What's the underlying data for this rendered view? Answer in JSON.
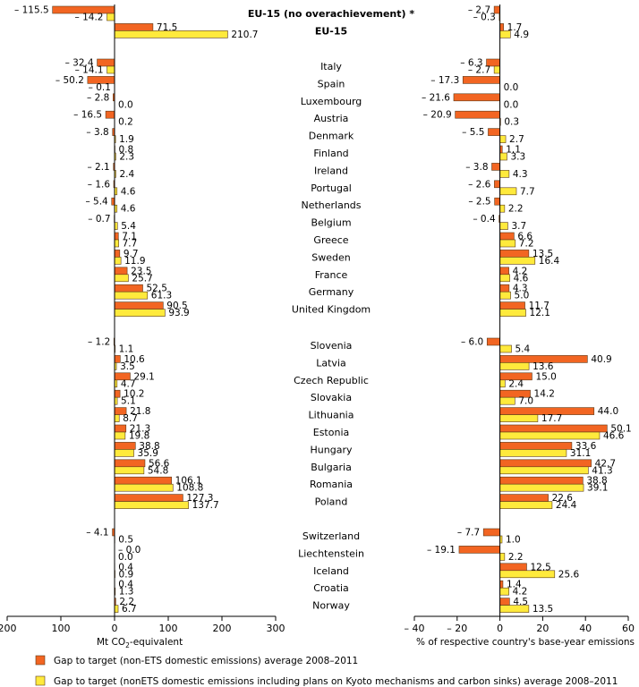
{
  "chart_data": {
    "type": "bar",
    "orientation": "horizontal",
    "categories": [
      "EU-15 (no overachievement) *",
      "EU-15",
      "Italy",
      "Spain",
      "Luxembourg",
      "Austria",
      "Denmark",
      "Finland",
      "Ireland",
      "Portugal",
      "Netherlands",
      "Belgium",
      "Greece",
      "Sweden",
      "France",
      "Germany",
      "United Kingdom",
      "Slovenia",
      "Latvia",
      "Czech Republic",
      "Slovakia",
      "Lithuania",
      "Estonia",
      "Hungary",
      "Bulgaria",
      "Romania",
      "Poland",
      "Switzerland",
      "Liechtenstein",
      "Iceland",
      "Croatia",
      "Norway"
    ],
    "bold_categories": [
      "EU-15 (no overachievement) *",
      "EU-15"
    ],
    "series": [
      {
        "name": "Gap to target (non-ETS domestic emissions) average 2008–2011",
        "color": "#f26522",
        "abs_values": [
          -115.5,
          71.5,
          -32.4,
          -50.2,
          -2.8,
          -16.5,
          -3.8,
          0.8,
          -2.1,
          -1.6,
          -5.4,
          -0.7,
          7.1,
          9.7,
          23.5,
          52.5,
          90.5,
          -1.2,
          10.6,
          29.1,
          10.2,
          21.8,
          21.3,
          38.8,
          56.6,
          106.1,
          127.3,
          -4.1,
          -0.0,
          0.4,
          0.4,
          2.2
        ],
        "abs_labels": [
          "– 115.5",
          "71.5",
          "– 32.4",
          "– 50.2",
          "– 2.8",
          "– 16.5",
          "– 3.8",
          "0.8",
          "– 2.1",
          "– 1.6",
          "– 5.4",
          "– 0.7",
          "7.1",
          "9.7",
          "23.5",
          "52.5",
          "90.5",
          "– 1.2",
          "10.6",
          "29.1",
          "10.2",
          "21.8",
          "21.3",
          "38.8",
          "56.6",
          "106.1",
          "127.3",
          "– 4.1",
          "– 0.0",
          "0.4",
          "0.4",
          "2.2"
        ],
        "pct_values": [
          -2.7,
          1.7,
          -6.3,
          -17.3,
          -21.6,
          -20.9,
          -5.5,
          1.1,
          -3.8,
          -2.6,
          -2.5,
          -0.4,
          6.6,
          13.5,
          4.2,
          4.3,
          11.7,
          -6.0,
          40.9,
          15.0,
          14.2,
          44.0,
          50.1,
          33.6,
          42.7,
          38.8,
          22.6,
          -7.7,
          -19.1,
          12.5,
          1.4,
          4.5
        ],
        "pct_labels": [
          "– 2.7",
          "1.7",
          "– 6.3",
          "– 17.3",
          "– 21.6",
          "– 20.9",
          "– 5.5",
          "1.1",
          "– 3.8",
          "– 2.6",
          "– 2.5",
          "– 0.4",
          "6.6",
          "13.5",
          "4.2",
          "4.3",
          "11.7",
          "– 6.0",
          "40.9",
          "15.0",
          "14.2",
          "44.0",
          "50.1",
          "33.6",
          "42.7",
          "38.8",
          "22.6",
          "– 7.7",
          "– 19.1",
          "12.5",
          "1.4",
          "4.5"
        ]
      },
      {
        "name": "Gap to target (nonETS domestic emissions including plans on Kyoto mechanisms and carbon sinks) average 2008–2011",
        "color": "#ffea3c",
        "abs_values": [
          -14.2,
          210.7,
          -14.1,
          -0.1,
          0.0,
          0.2,
          1.9,
          2.3,
          2.4,
          4.6,
          4.6,
          5.4,
          7.7,
          11.9,
          25.7,
          61.3,
          93.9,
          1.1,
          3.5,
          4.7,
          5.1,
          8.7,
          19.8,
          35.9,
          54.8,
          108.8,
          137.7,
          0.5,
          0.0,
          0.9,
          1.3,
          6.7
        ],
        "abs_labels": [
          "– 14.2",
          "210.7",
          "– 14.1",
          "– 0.1",
          "0.0",
          "0.2",
          "1.9",
          "2.3",
          "2.4",
          "4.6",
          "4.6",
          "5.4",
          "7.7",
          "11.9",
          "25.7",
          "61.3",
          "93.9",
          "1.1",
          "3.5",
          "4.7",
          "5.1",
          "8.7",
          "19.8",
          "35.9",
          "54.8",
          "108.8",
          "137.7",
          "0.5",
          "0.0",
          "0.9",
          "1.3",
          "6.7"
        ],
        "pct_values": [
          -0.3,
          4.9,
          -2.7,
          0.0,
          0.0,
          0.3,
          2.7,
          3.3,
          4.3,
          7.7,
          2.2,
          3.7,
          7.2,
          16.4,
          4.6,
          5.0,
          12.1,
          5.4,
          13.6,
          2.4,
          7.0,
          17.7,
          46.6,
          31.1,
          41.3,
          39.1,
          24.4,
          1.0,
          2.2,
          25.6,
          4.2,
          13.5
        ],
        "pct_labels": [
          "– 0.3",
          "4.9",
          "– 2.7",
          "0.0",
          "0.0",
          "0.3",
          "2.7",
          "3.3",
          "4.3",
          "7.7",
          "2.2",
          "3.7",
          "7.2",
          "16.4",
          "4.6",
          "5.0",
          "12.1",
          "5.4",
          "13.6",
          "2.4",
          "7.0",
          "17.7",
          "46.6",
          "31.1",
          "41.3",
          "39.1",
          "24.4",
          "1.0",
          "2.2",
          "25.6",
          "4.2",
          "13.5"
        ]
      }
    ],
    "panels": [
      {
        "xlabel_main": "Mt CO",
        "xlabel_sub": "2",
        "xlabel_rest": "-equivalent",
        "xlim": [
          -200,
          300
        ],
        "ticks": [
          -200,
          -100,
          0,
          100,
          200,
          300
        ],
        "tick_labels": [
          "200",
          "100",
          "0",
          "100",
          "200",
          "300"
        ]
      },
      {
        "xlabel": "% of respective country's base-year emissions",
        "xlim": [
          -40,
          60
        ],
        "ticks": [
          -40,
          -20,
          0,
          20,
          40,
          60
        ],
        "tick_labels": [
          "– 40",
          "– 20",
          "0",
          "20",
          "40",
          "60"
        ]
      }
    ],
    "grid": false,
    "legend_position": "bottom"
  }
}
